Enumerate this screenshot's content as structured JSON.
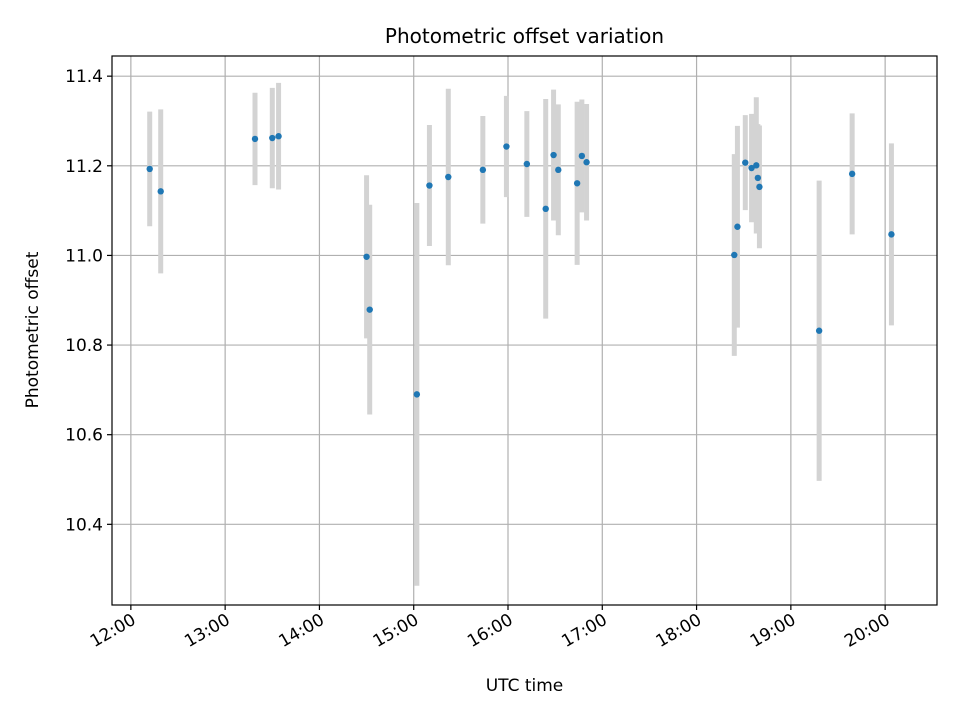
{
  "chart_data": {
    "type": "scatter",
    "title": "Photometric offset variation",
    "xlabel": "UTC time",
    "ylabel": "Photometric offset",
    "xlim": [
      "11:48",
      "20:33"
    ],
    "ylim": [
      10.22,
      11.445
    ],
    "x_ticks": [
      "12:00",
      "13:00",
      "14:00",
      "15:00",
      "16:00",
      "17:00",
      "18:00",
      "19:00",
      "20:00"
    ],
    "y_ticks": [
      10.4,
      10.6,
      10.8,
      11.0,
      11.2,
      11.4
    ],
    "y_tick_labels": [
      "10.4",
      "10.6",
      "10.8",
      "11.0",
      "11.2",
      "11.4"
    ],
    "grid": true,
    "marker_color": "#1f77b4",
    "errorbar_color": "#d3d3d3",
    "points": [
      {
        "x": "12:12",
        "y": 11.193,
        "err": 0.128
      },
      {
        "x": "12:19",
        "y": 11.143,
        "err": 0.183
      },
      {
        "x": "13:19",
        "y": 11.26,
        "err": 0.103
      },
      {
        "x": "13:30",
        "y": 11.262,
        "err": 0.112
      },
      {
        "x": "13:34",
        "y": 11.266,
        "err": 0.119
      },
      {
        "x": "14:30",
        "y": 10.997,
        "err": 0.182
      },
      {
        "x": "14:32",
        "y": 10.879,
        "err": 0.234
      },
      {
        "x": "15:02",
        "y": 10.69,
        "err": 0.427
      },
      {
        "x": "15:10",
        "y": 11.156,
        "err": 0.135
      },
      {
        "x": "15:22",
        "y": 11.175,
        "err": 0.197
      },
      {
        "x": "15:44",
        "y": 11.191,
        "err": 0.12
      },
      {
        "x": "15:59",
        "y": 11.243,
        "err": 0.113
      },
      {
        "x": "16:12",
        "y": 11.204,
        "err": 0.118
      },
      {
        "x": "16:24",
        "y": 11.104,
        "err": 0.245
      },
      {
        "x": "16:29",
        "y": 11.224,
        "err": 0.146
      },
      {
        "x": "16:32",
        "y": 11.191,
        "err": 0.146
      },
      {
        "x": "16:44",
        "y": 11.161,
        "err": 0.182
      },
      {
        "x": "16:47",
        "y": 11.222,
        "err": 0.126
      },
      {
        "x": "16:50",
        "y": 11.208,
        "err": 0.13
      },
      {
        "x": "18:24",
        "y": 11.001,
        "err": 0.225
      },
      {
        "x": "18:26",
        "y": 11.064,
        "err": 0.225
      },
      {
        "x": "18:31",
        "y": 11.207,
        "err": 0.106
      },
      {
        "x": "18:35",
        "y": 11.195,
        "err": 0.121
      },
      {
        "x": "18:38",
        "y": 11.201,
        "err": 0.152
      },
      {
        "x": "18:39",
        "y": 11.173,
        "err": 0.12
      },
      {
        "x": "18:40",
        "y": 11.153,
        "err": 0.137
      },
      {
        "x": "19:18",
        "y": 10.832,
        "err": 0.335
      },
      {
        "x": "19:39",
        "y": 11.182,
        "err": 0.135
      },
      {
        "x": "20:04",
        "y": 11.047,
        "err": 0.203
      }
    ]
  }
}
